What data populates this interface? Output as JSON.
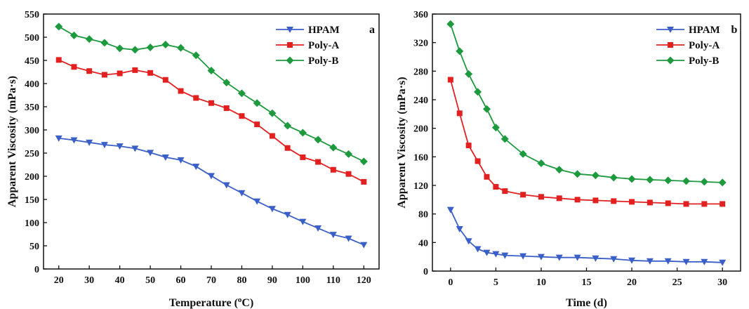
{
  "colors": {
    "HPAM": "#3a5fc8",
    "Poly-A": "#e32020",
    "Poly-B": "#1d9a3d"
  },
  "chart_data": [
    {
      "panel": "a",
      "type": "line",
      "xlabel": "Temperature (°C)",
      "xlabel_main": "Temperature (",
      "xlabel_sup": "o",
      "xlabel_end": "C)",
      "ylabel": "Apparent Viscosity (mPa·s)",
      "xlim": [
        15,
        125
      ],
      "ylim": [
        0,
        550
      ],
      "xticks": [
        20,
        30,
        40,
        50,
        60,
        70,
        80,
        90,
        100,
        110,
        120
      ],
      "yticks": [
        0,
        50,
        100,
        150,
        200,
        250,
        300,
        350,
        400,
        450,
        500,
        550
      ],
      "legend_position": "top-right",
      "x": [
        20,
        25,
        30,
        35,
        40,
        45,
        50,
        55,
        60,
        65,
        70,
        75,
        80,
        85,
        90,
        95,
        100,
        105,
        110,
        115,
        120
      ],
      "series": [
        {
          "name": "HPAM",
          "marker": "triangle-down",
          "values": [
            282,
            278,
            273,
            268,
            265,
            260,
            251,
            241,
            235,
            221,
            201,
            181,
            164,
            146,
            130,
            117,
            102,
            88,
            74,
            66,
            52
          ]
        },
        {
          "name": "Poly-A",
          "marker": "square",
          "values": [
            451,
            436,
            427,
            419,
            422,
            429,
            423,
            408,
            384,
            369,
            358,
            347,
            330,
            312,
            287,
            261,
            241,
            231,
            214,
            205,
            188
          ]
        },
        {
          "name": "Poly-B",
          "marker": "diamond",
          "values": [
            523,
            504,
            496,
            488,
            476,
            473,
            478,
            484,
            477,
            461,
            428,
            402,
            379,
            358,
            336,
            309,
            294,
            279,
            262,
            248,
            232
          ]
        }
      ]
    },
    {
      "panel": "b",
      "type": "line",
      "xlabel": "Time (d)",
      "ylabel": "Apparent Viscosity (mPa·s)",
      "xlim": [
        -2,
        32
      ],
      "ylim": [
        0,
        360
      ],
      "xticks": [
        0,
        5,
        10,
        15,
        20,
        25,
        30
      ],
      "yticks": [
        0,
        40,
        80,
        120,
        160,
        200,
        240,
        280,
        320,
        360
      ],
      "legend_position": "top-right",
      "x": [
        0,
        1,
        2,
        3,
        4,
        5,
        6,
        8,
        10,
        12,
        14,
        16,
        18,
        20,
        22,
        24,
        26,
        28,
        30
      ],
      "series": [
        {
          "name": "HPAM",
          "marker": "triangle-down",
          "values": [
            86,
            59,
            42,
            31,
            26,
            24,
            22,
            21,
            20,
            19,
            19,
            18,
            17,
            15,
            14,
            14,
            13,
            13,
            12
          ]
        },
        {
          "name": "Poly-A",
          "marker": "square",
          "values": [
            268,
            221,
            176,
            154,
            132,
            118,
            112,
            107,
            104,
            102,
            100,
            99,
            98,
            97,
            96,
            95,
            94,
            94,
            94
          ]
        },
        {
          "name": "Poly-B",
          "marker": "diamond",
          "values": [
            346,
            308,
            276,
            251,
            227,
            201,
            185,
            164,
            151,
            142,
            136,
            134,
            131,
            129,
            128,
            127,
            126,
            125,
            124
          ]
        }
      ]
    }
  ]
}
